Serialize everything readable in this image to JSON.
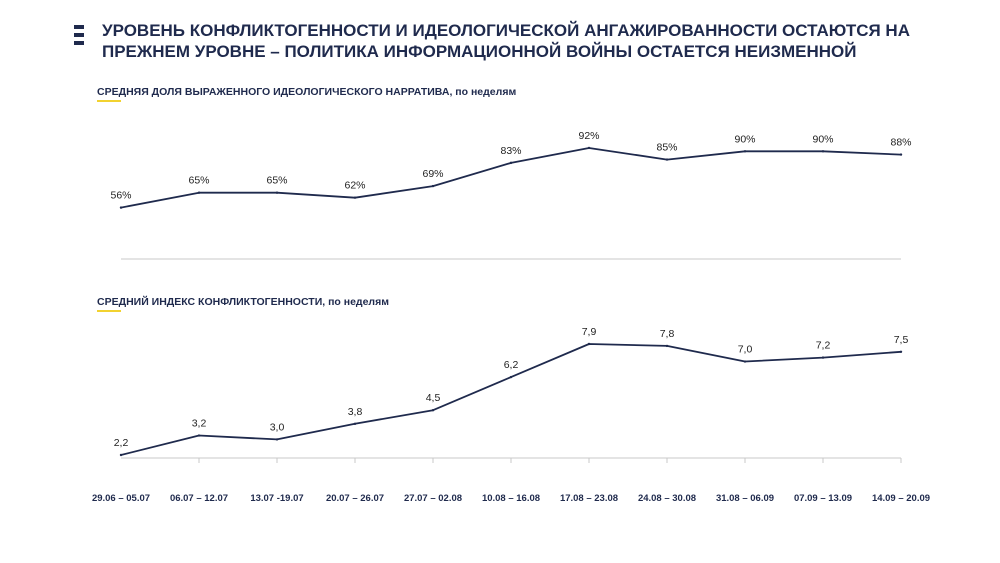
{
  "header": {
    "title": "УРОВЕНЬ КОНФЛИКТОГЕННОСТИ И ИДЕОЛОГИЧЕСКОЙ АНГАЖИРОВАННОСТИ ОСТАЮТСЯ НА ПРЕЖНЕМ УРОВНЕ – ПОЛИТИКА ИНФОРМАЦИОННОЙ ВОЙНЫ ОСТАЕТСЯ НЕИЗМЕННОЙ",
    "logo_icon": "menu-bars-icon"
  },
  "colors": {
    "primary": "#1f2a4d",
    "accent": "#f2d230",
    "axis": "#c9c9c9"
  },
  "chart_data": [
    {
      "type": "line",
      "title": "СРЕДНЯЯ ДОЛЯ ВЫРАЖЕННОГО ИДЕОЛОГИЧЕСКОГО НАРРАТИВА, по неделям",
      "categories": [
        "29.06 – 05.07",
        "06.07 – 12.07",
        "13.07 -19.07",
        "20.07 – 26.07",
        "27.07 – 02.08",
        "10.08 – 16.08",
        "17.08 – 23.08",
        "24.08 – 30.08",
        "31.08 – 06.09",
        "07.09 – 13.09",
        "14.09 – 20.09"
      ],
      "values": [
        56,
        65,
        65,
        62,
        69,
        83,
        92,
        85,
        90,
        90,
        88
      ],
      "labels": [
        "56%",
        "65%",
        "65%",
        "62%",
        "69%",
        "83%",
        "92%",
        "85%",
        "90%",
        "90%",
        "88%"
      ],
      "unit": "%",
      "ylim": [
        25,
        95
      ]
    },
    {
      "type": "line",
      "title": "СРЕДНИЙ ИНДЕКС КОНФЛИКТОГЕННОСТИ, по неделям",
      "categories": [
        "29.06 – 05.07",
        "06.07 – 12.07",
        "13.07 -19.07",
        "20.07 – 26.07",
        "27.07 – 02.08",
        "10.08 – 16.08",
        "17.08 – 23.08",
        "24.08 – 30.08",
        "31.08 – 06.09",
        "07.09 – 13.09",
        "14.09 – 20.09"
      ],
      "values": [
        2.2,
        3.2,
        3.0,
        3.8,
        4.5,
        6.2,
        7.9,
        7.8,
        7.0,
        7.2,
        7.5
      ],
      "labels": [
        "2,2",
        "3,2",
        "3,0",
        "3,8",
        "4,5",
        "6,2",
        "7,9",
        "7,8",
        "7,0",
        "7,2",
        "7,5"
      ],
      "ylim": [
        2.2,
        7.9
      ]
    }
  ]
}
